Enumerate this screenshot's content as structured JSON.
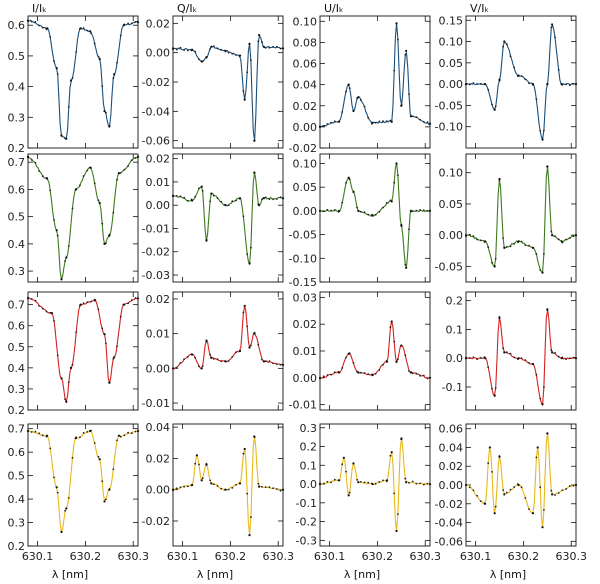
{
  "figure": {
    "columns": [
      "I/Ic",
      "Q/Ic",
      "U/Ic",
      "V/Ic"
    ],
    "column_titles": [
      "I/Iₖ",
      "Q/Iₖ",
      "U/Iₖ",
      "V/Iₖ"
    ],
    "xlabel": "λ [nm]",
    "x_ticks": [
      "630.1",
      "630.2",
      "630.3"
    ],
    "row_colors": [
      "#1b4f7a",
      "#3d7a1e",
      "#d42020",
      "#e8b81a"
    ]
  },
  "chart_data": [
    {
      "type": "line",
      "row": 0,
      "col": 0,
      "title": "I/Ic",
      "xlim": [
        630.08,
        630.31
      ],
      "ylim": [
        0.2,
        0.63
      ],
      "yticks": [
        0.2,
        0.3,
        0.4,
        0.5,
        0.6
      ],
      "ytick_labels": [
        "0.2",
        "0.3",
        "0.4",
        "0.5",
        "0.6"
      ],
      "color": "#1b4f7a",
      "x": [
        630.08,
        630.12,
        630.14,
        630.15,
        630.16,
        630.17,
        630.19,
        630.21,
        630.23,
        630.24,
        630.25,
        630.26,
        630.28,
        630.31
      ],
      "y": [
        0.615,
        0.59,
        0.46,
        0.24,
        0.23,
        0.42,
        0.59,
        0.58,
        0.49,
        0.32,
        0.27,
        0.44,
        0.6,
        0.61
      ]
    },
    {
      "type": "line",
      "row": 0,
      "col": 1,
      "title": "Q/Ic",
      "xlim": [
        630.08,
        630.31
      ],
      "ylim": [
        -0.065,
        0.025
      ],
      "yticks": [
        -0.06,
        -0.04,
        -0.02,
        0.0,
        0.02
      ],
      "ytick_labels": [
        "-0.06",
        "-0.04",
        "-0.02",
        "0.00",
        "0.02"
      ],
      "color": "#1b4f7a",
      "x": [
        630.08,
        630.12,
        630.14,
        630.15,
        630.16,
        630.19,
        630.22,
        630.23,
        630.24,
        630.25,
        630.26,
        630.27,
        630.31
      ],
      "y": [
        0.003,
        0.002,
        -0.006,
        -0.003,
        0.004,
        0.001,
        -0.002,
        -0.032,
        0.006,
        -0.06,
        0.012,
        0.004,
        0.003
      ]
    },
    {
      "type": "line",
      "row": 0,
      "col": 2,
      "title": "U/Ic",
      "xlim": [
        630.08,
        630.31
      ],
      "ylim": [
        -0.02,
        0.105
      ],
      "yticks": [
        -0.02,
        0.0,
        0.02,
        0.04,
        0.06,
        0.08,
        0.1
      ],
      "ytick_labels": [
        "-0.02",
        "0.00",
        "0.02",
        "0.04",
        "0.06",
        "0.08",
        "0.10"
      ],
      "color": "#1b4f7a",
      "x": [
        630.08,
        630.12,
        630.14,
        630.15,
        630.16,
        630.19,
        630.23,
        630.24,
        630.25,
        630.26,
        630.27,
        630.31
      ],
      "y": [
        0.0,
        0.005,
        0.04,
        0.015,
        0.028,
        0.004,
        0.005,
        0.098,
        0.02,
        0.072,
        0.01,
        0.003
      ]
    },
    {
      "type": "line",
      "row": 0,
      "col": 3,
      "title": "V/Ic",
      "xlim": [
        630.08,
        630.31
      ],
      "ylim": [
        -0.15,
        0.16
      ],
      "yticks": [
        -0.1,
        -0.05,
        0.0,
        0.05,
        0.1,
        0.15
      ],
      "ytick_labels": [
        "-0.10",
        "-0.05",
        "0.00",
        "0.05",
        "0.10",
        "0.15"
      ],
      "color": "#1b4f7a",
      "x": [
        630.08,
        630.12,
        630.14,
        630.15,
        630.16,
        630.19,
        630.22,
        630.24,
        630.25,
        630.26,
        630.28,
        630.31
      ],
      "y": [
        0.0,
        0.0,
        -0.06,
        0.01,
        0.1,
        0.02,
        0.0,
        -0.13,
        0.0,
        0.14,
        0.0,
        0.0
      ]
    },
    {
      "type": "line",
      "row": 1,
      "col": 0,
      "title": "I/Ic",
      "xlim": [
        630.08,
        630.31
      ],
      "ylim": [
        0.26,
        0.73
      ],
      "yticks": [
        0.3,
        0.4,
        0.5,
        0.6,
        0.7
      ],
      "ytick_labels": [
        "0.3",
        "0.4",
        "0.5",
        "0.6",
        "0.7"
      ],
      "color": "#3d7a1e",
      "x": [
        630.08,
        630.12,
        630.14,
        630.15,
        630.16,
        630.18,
        630.21,
        630.23,
        630.24,
        630.25,
        630.27,
        630.31
      ],
      "y": [
        0.72,
        0.64,
        0.45,
        0.27,
        0.35,
        0.6,
        0.68,
        0.55,
        0.4,
        0.43,
        0.66,
        0.72
      ]
    },
    {
      "type": "line",
      "row": 1,
      "col": 1,
      "title": "Q/Ic",
      "xlim": [
        630.08,
        630.31
      ],
      "ylim": [
        -0.033,
        0.022
      ],
      "yticks": [
        -0.03,
        -0.02,
        -0.01,
        0.0,
        0.01,
        0.02
      ],
      "ytick_labels": [
        "-0.03",
        "-0.02",
        "-0.01",
        "0.00",
        "0.01",
        "0.02"
      ],
      "color": "#3d7a1e",
      "x": [
        630.08,
        630.12,
        630.14,
        630.15,
        630.16,
        630.19,
        630.22,
        630.24,
        630.25,
        630.26,
        630.27,
        630.31
      ],
      "y": [
        0.004,
        0.002,
        0.008,
        -0.015,
        0.005,
        0.0,
        0.003,
        -0.025,
        0.014,
        0.0,
        0.003,
        0.003
      ]
    },
    {
      "type": "line",
      "row": 1,
      "col": 2,
      "title": "U/Ic",
      "xlim": [
        630.08,
        630.31
      ],
      "ylim": [
        -0.15,
        0.12
      ],
      "yticks": [
        -0.15,
        -0.1,
        -0.05,
        0.0,
        0.05,
        0.1
      ],
      "ytick_labels": [
        "-0.15",
        "-0.10",
        "-0.05",
        "0.00",
        "0.05",
        "0.10"
      ],
      "color": "#3d7a1e",
      "x": [
        630.08,
        630.12,
        630.14,
        630.15,
        630.16,
        630.19,
        630.23,
        630.24,
        630.25,
        630.26,
        630.27,
        630.31
      ],
      "y": [
        0.0,
        0.0,
        0.07,
        0.04,
        0.0,
        -0.01,
        0.02,
        0.1,
        -0.03,
        -0.12,
        0.0,
        0.0
      ]
    },
    {
      "type": "line",
      "row": 1,
      "col": 3,
      "title": "V/Ic",
      "xlim": [
        630.08,
        630.31
      ],
      "ylim": [
        -0.075,
        0.13
      ],
      "yticks": [
        -0.05,
        0.0,
        0.05,
        0.1
      ],
      "ytick_labels": [
        "-0.05",
        "0.00",
        "0.05",
        "0.10"
      ],
      "color": "#3d7a1e",
      "x": [
        630.08,
        630.12,
        630.14,
        630.15,
        630.16,
        630.19,
        630.22,
        630.24,
        630.25,
        630.26,
        630.28,
        630.31
      ],
      "y": [
        0.0,
        -0.01,
        -0.05,
        0.09,
        -0.02,
        -0.01,
        -0.02,
        -0.06,
        0.11,
        0.0,
        -0.01,
        0.0
      ]
    },
    {
      "type": "line",
      "row": 2,
      "col": 0,
      "title": "I/Ic",
      "xlim": [
        630.08,
        630.31
      ],
      "ylim": [
        0.2,
        0.76
      ],
      "yticks": [
        0.2,
        0.3,
        0.4,
        0.5,
        0.6,
        0.7
      ],
      "ytick_labels": [
        "0.2",
        "0.3",
        "0.4",
        "0.5",
        "0.6",
        "0.7"
      ],
      "color": "#d42020",
      "x": [
        630.08,
        630.13,
        630.15,
        630.16,
        630.17,
        630.19,
        630.22,
        630.24,
        630.25,
        630.26,
        630.28,
        630.31
      ],
      "y": [
        0.73,
        0.66,
        0.35,
        0.24,
        0.4,
        0.7,
        0.72,
        0.56,
        0.33,
        0.45,
        0.7,
        0.73
      ]
    },
    {
      "type": "line",
      "row": 2,
      "col": 1,
      "title": "Q/Ic",
      "xlim": [
        630.08,
        630.31
      ],
      "ylim": [
        -0.012,
        0.022
      ],
      "yticks": [
        -0.01,
        0.0,
        0.01,
        0.02
      ],
      "ytick_labels": [
        "-0.01",
        "0.00",
        "0.01",
        "0.02"
      ],
      "color": "#d42020",
      "x": [
        630.08,
        630.12,
        630.14,
        630.15,
        630.16,
        630.19,
        630.22,
        630.23,
        630.24,
        630.25,
        630.27,
        630.31
      ],
      "y": [
        0.0,
        0.004,
        0.0,
        0.008,
        0.003,
        0.002,
        0.005,
        0.018,
        0.006,
        0.01,
        0.002,
        0.001
      ]
    },
    {
      "type": "line",
      "row": 2,
      "col": 2,
      "title": "U/Ic",
      "xlim": [
        630.08,
        630.31
      ],
      "ylim": [
        -0.012,
        0.032
      ],
      "yticks": [
        -0.01,
        0.0,
        0.01,
        0.02,
        0.03
      ],
      "ytick_labels": [
        "-0.01",
        "0.00",
        "0.01",
        "0.02",
        "0.03"
      ],
      "color": "#d42020",
      "x": [
        630.08,
        630.12,
        630.14,
        630.16,
        630.19,
        630.22,
        630.23,
        630.24,
        630.25,
        630.27,
        630.31
      ],
      "y": [
        0.0,
        0.002,
        0.009,
        0.002,
        0.001,
        0.006,
        0.021,
        0.006,
        0.012,
        0.002,
        0.0
      ]
    },
    {
      "type": "line",
      "row": 2,
      "col": 3,
      "title": "V/Ic",
      "xlim": [
        630.08,
        630.31
      ],
      "ylim": [
        -0.18,
        0.23
      ],
      "yticks": [
        -0.1,
        0.0,
        0.1,
        0.2
      ],
      "ytick_labels": [
        "-0.1",
        "0.0",
        "0.1",
        "0.2"
      ],
      "color": "#d42020",
      "x": [
        630.08,
        630.12,
        630.14,
        630.15,
        630.16,
        630.19,
        630.22,
        630.24,
        630.25,
        630.26,
        630.28,
        630.31
      ],
      "y": [
        0.0,
        0.0,
        -0.13,
        0.14,
        0.02,
        0.0,
        -0.02,
        -0.16,
        0.17,
        0.02,
        0.0,
        0.0
      ]
    },
    {
      "type": "line",
      "row": 3,
      "col": 0,
      "title": "I/Ic",
      "xlim": [
        630.08,
        630.31
      ],
      "ylim": [
        0.2,
        0.72
      ],
      "yticks": [
        0.2,
        0.3,
        0.4,
        0.5,
        0.6,
        0.7
      ],
      "ytick_labels": [
        "0.2",
        "0.3",
        "0.4",
        "0.5",
        "0.6",
        "0.7"
      ],
      "color": "#e8b81a",
      "x": [
        630.08,
        630.12,
        630.14,
        630.15,
        630.16,
        630.18,
        630.21,
        630.23,
        630.24,
        630.25,
        630.27,
        630.31
      ],
      "y": [
        0.69,
        0.67,
        0.45,
        0.26,
        0.36,
        0.66,
        0.69,
        0.57,
        0.39,
        0.44,
        0.67,
        0.69
      ]
    },
    {
      "type": "line",
      "row": 3,
      "col": 1,
      "title": "Q/Ic",
      "xlim": [
        630.08,
        630.31
      ],
      "ylim": [
        -0.036,
        0.042
      ],
      "yticks": [
        -0.02,
        0.0,
        0.02,
        0.04
      ],
      "ytick_labels": [
        "-0.02",
        "0.00",
        "0.02",
        "0.04"
      ],
      "color": "#e8b81a",
      "x": [
        630.08,
        630.12,
        630.13,
        630.14,
        630.15,
        630.16,
        630.19,
        630.22,
        630.23,
        630.24,
        630.25,
        630.26,
        630.31
      ],
      "y": [
        0.0,
        0.003,
        0.022,
        0.006,
        0.016,
        0.004,
        0.0,
        0.004,
        0.026,
        -0.029,
        0.034,
        0.002,
        0.0
      ]
    },
    {
      "type": "line",
      "row": 3,
      "col": 2,
      "title": "U/Ic",
      "xlim": [
        630.08,
        630.31
      ],
      "ylim": [
        -0.33,
        0.32
      ],
      "yticks": [
        -0.3,
        -0.2,
        -0.1,
        0.0,
        0.1,
        0.2,
        0.3
      ],
      "ytick_labels": [
        "-0.3",
        "-0.2",
        "-0.1",
        "0.0",
        "0.1",
        "0.2",
        "0.3"
      ],
      "color": "#e8b81a",
      "x": [
        630.08,
        630.12,
        630.13,
        630.14,
        630.15,
        630.16,
        630.19,
        630.22,
        630.23,
        630.24,
        630.25,
        630.26,
        630.31
      ],
      "y": [
        0.0,
        0.02,
        0.14,
        -0.06,
        0.11,
        0.01,
        0.0,
        0.02,
        0.17,
        -0.25,
        0.24,
        0.01,
        0.0
      ]
    },
    {
      "type": "line",
      "row": 3,
      "col": 3,
      "title": "V/Ic",
      "xlim": [
        630.08,
        630.31
      ],
      "ylim": [
        -0.065,
        0.065
      ],
      "yticks": [
        -0.06,
        -0.04,
        -0.02,
        0.0,
        0.02,
        0.04,
        0.06
      ],
      "ytick_labels": [
        "-0.06",
        "-0.04",
        "-0.02",
        "0.00",
        "0.02",
        "0.04",
        "0.06"
      ],
      "color": "#e8b81a",
      "x": [
        630.08,
        630.12,
        630.13,
        630.14,
        630.15,
        630.16,
        630.19,
        630.22,
        630.23,
        630.24,
        630.25,
        630.26,
        630.31
      ],
      "y": [
        0.0,
        -0.02,
        0.04,
        -0.03,
        0.03,
        -0.01,
        0.0,
        -0.03,
        0.04,
        -0.045,
        0.055,
        -0.01,
        0.0
      ]
    }
  ]
}
